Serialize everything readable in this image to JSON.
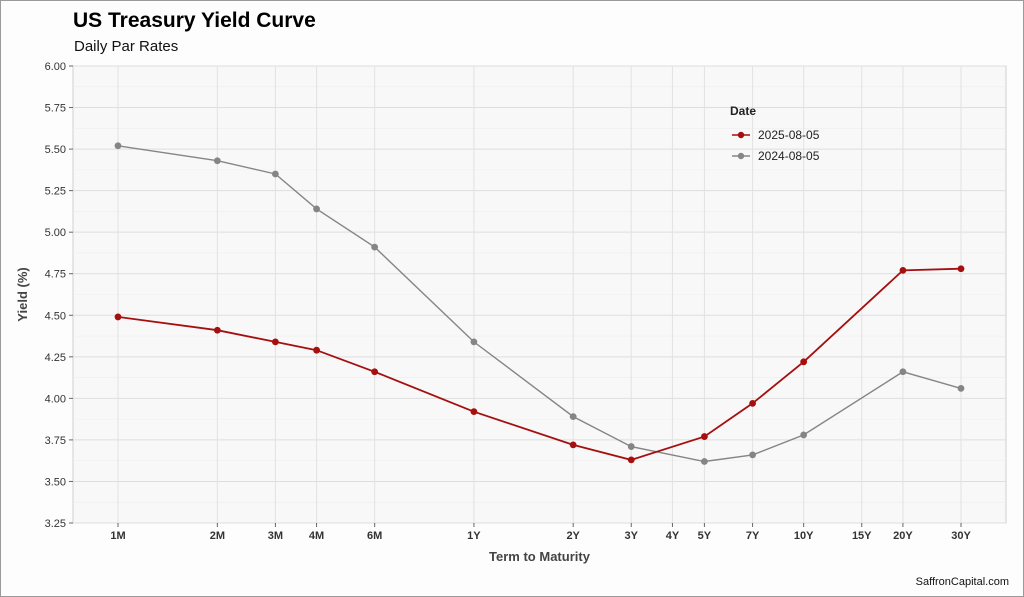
{
  "header": {
    "title": "US Treasury Yield Curve",
    "subtitle": "Daily Par Rates"
  },
  "footer": {
    "credit": "SaffronCapital.com"
  },
  "chart_data": {
    "type": "line",
    "title": "US Treasury Yield Curve",
    "subtitle": "Daily Par Rates",
    "xlabel": "Term to Maturity",
    "ylabel": "Yield (%)",
    "x_scale": "log",
    "x_unit": "years",
    "ylim": [
      3.25,
      6.0
    ],
    "y_ticks": [
      "3.25",
      "3.50",
      "3.75",
      "4.00",
      "4.25",
      "4.50",
      "4.75",
      "5.00",
      "5.25",
      "5.50",
      "5.75",
      "6.00"
    ],
    "x_ticks": [
      {
        "label": "1M",
        "years": 0.0833
      },
      {
        "label": "2M",
        "years": 0.1667
      },
      {
        "label": "3M",
        "years": 0.25
      },
      {
        "label": "4M",
        "years": 0.3333
      },
      {
        "label": "6M",
        "years": 0.5
      },
      {
        "label": "1Y",
        "years": 1
      },
      {
        "label": "2Y",
        "years": 2
      },
      {
        "label": "3Y",
        "years": 3
      },
      {
        "label": "4Y",
        "years": 4
      },
      {
        "label": "5Y",
        "years": 5
      },
      {
        "label": "7Y",
        "years": 7
      },
      {
        "label": "10Y",
        "years": 10
      },
      {
        "label": "15Y",
        "years": 15
      },
      {
        "label": "20Y",
        "years": 20
      },
      {
        "label": "30Y",
        "years": 30
      }
    ],
    "grid": true,
    "legend": {
      "title": "Date",
      "position": "top-right"
    },
    "series": [
      {
        "name": "2025-08-05",
        "color": "#a50f0f",
        "points": [
          {
            "term": "1M",
            "years": 0.0833,
            "y": 4.49
          },
          {
            "term": "2M",
            "years": 0.1667,
            "y": 4.41
          },
          {
            "term": "3M",
            "years": 0.25,
            "y": 4.34
          },
          {
            "term": "4M",
            "years": 0.3333,
            "y": 4.29
          },
          {
            "term": "6M",
            "years": 0.5,
            "y": 4.16
          },
          {
            "term": "1Y",
            "years": 1,
            "y": 3.92
          },
          {
            "term": "2Y",
            "years": 2,
            "y": 3.72
          },
          {
            "term": "3Y",
            "years": 3,
            "y": 3.63
          },
          {
            "term": "5Y",
            "years": 5,
            "y": 3.77
          },
          {
            "term": "7Y",
            "years": 7,
            "y": 3.97
          },
          {
            "term": "10Y",
            "years": 10,
            "y": 4.22
          },
          {
            "term": "20Y",
            "years": 20,
            "y": 4.77
          },
          {
            "term": "30Y",
            "years": 30,
            "y": 4.78
          }
        ]
      },
      {
        "name": "2024-08-05",
        "color": "#858585",
        "points": [
          {
            "term": "1M",
            "years": 0.0833,
            "y": 5.52
          },
          {
            "term": "2M",
            "years": 0.1667,
            "y": 5.43
          },
          {
            "term": "3M",
            "years": 0.25,
            "y": 5.35
          },
          {
            "term": "4M",
            "years": 0.3333,
            "y": 5.14
          },
          {
            "term": "6M",
            "years": 0.5,
            "y": 4.91
          },
          {
            "term": "1Y",
            "years": 1,
            "y": 4.34
          },
          {
            "term": "2Y",
            "years": 2,
            "y": 3.89
          },
          {
            "term": "3Y",
            "years": 3,
            "y": 3.71
          },
          {
            "term": "5Y",
            "years": 5,
            "y": 3.62
          },
          {
            "term": "7Y",
            "years": 7,
            "y": 3.66
          },
          {
            "term": "10Y",
            "years": 10,
            "y": 3.78
          },
          {
            "term": "20Y",
            "years": 20,
            "y": 4.16
          },
          {
            "term": "30Y",
            "years": 30,
            "y": 4.06
          }
        ]
      }
    ]
  }
}
